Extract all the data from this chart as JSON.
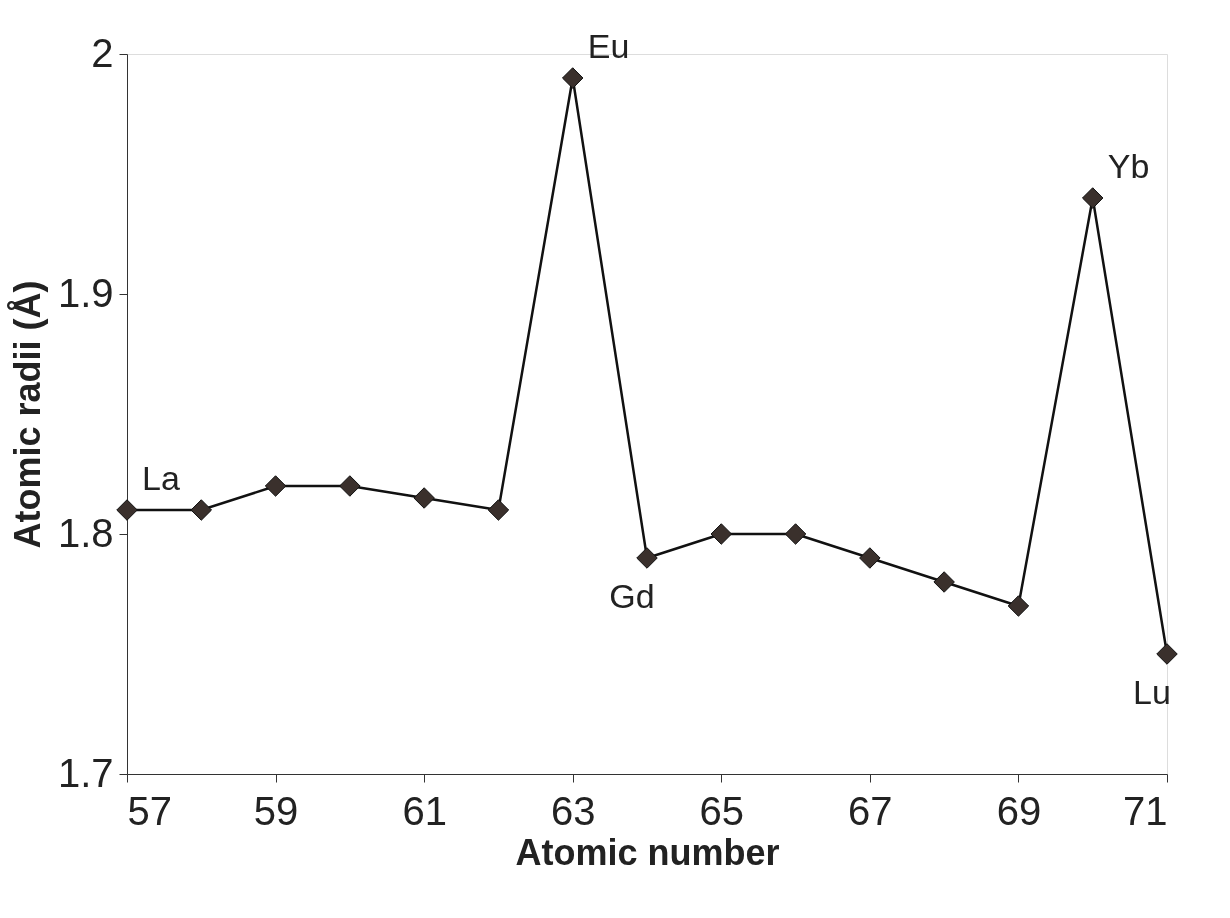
{
  "chart_data": {
    "type": "line",
    "xlabel": "Atomic number",
    "ylabel": "Atomic radii (Å)",
    "x": [
      57,
      58,
      59,
      60,
      61,
      62,
      63,
      64,
      65,
      66,
      67,
      68,
      69,
      70,
      71
    ],
    "series": [
      {
        "color": "#3a302c",
        "values": [
          1.81,
          1.81,
          1.82,
          1.82,
          1.815,
          1.81,
          1.99,
          1.79,
          1.8,
          1.8,
          1.79,
          1.78,
          1.77,
          1.94,
          1.75
        ]
      }
    ],
    "xlim": [
      57,
      71
    ],
    "xticks": [
      57,
      59,
      61,
      63,
      65,
      67,
      69,
      71
    ],
    "ylim": [
      1.7,
      2.0
    ],
    "yticks": [
      1.7,
      1.8,
      1.9,
      2.0
    ],
    "marker": "diamond",
    "line_style": "solid",
    "grid": false,
    "annotations": [
      {
        "text": "La",
        "x": 57,
        "y": 1.81
      },
      {
        "text": "Eu",
        "x": 63,
        "y": 1.99
      },
      {
        "text": "Gd",
        "x": 64,
        "y": 1.79
      },
      {
        "text": "Yb",
        "x": 70,
        "y": 1.94
      },
      {
        "text": "Lu",
        "x": 71,
        "y": 1.75
      }
    ]
  }
}
